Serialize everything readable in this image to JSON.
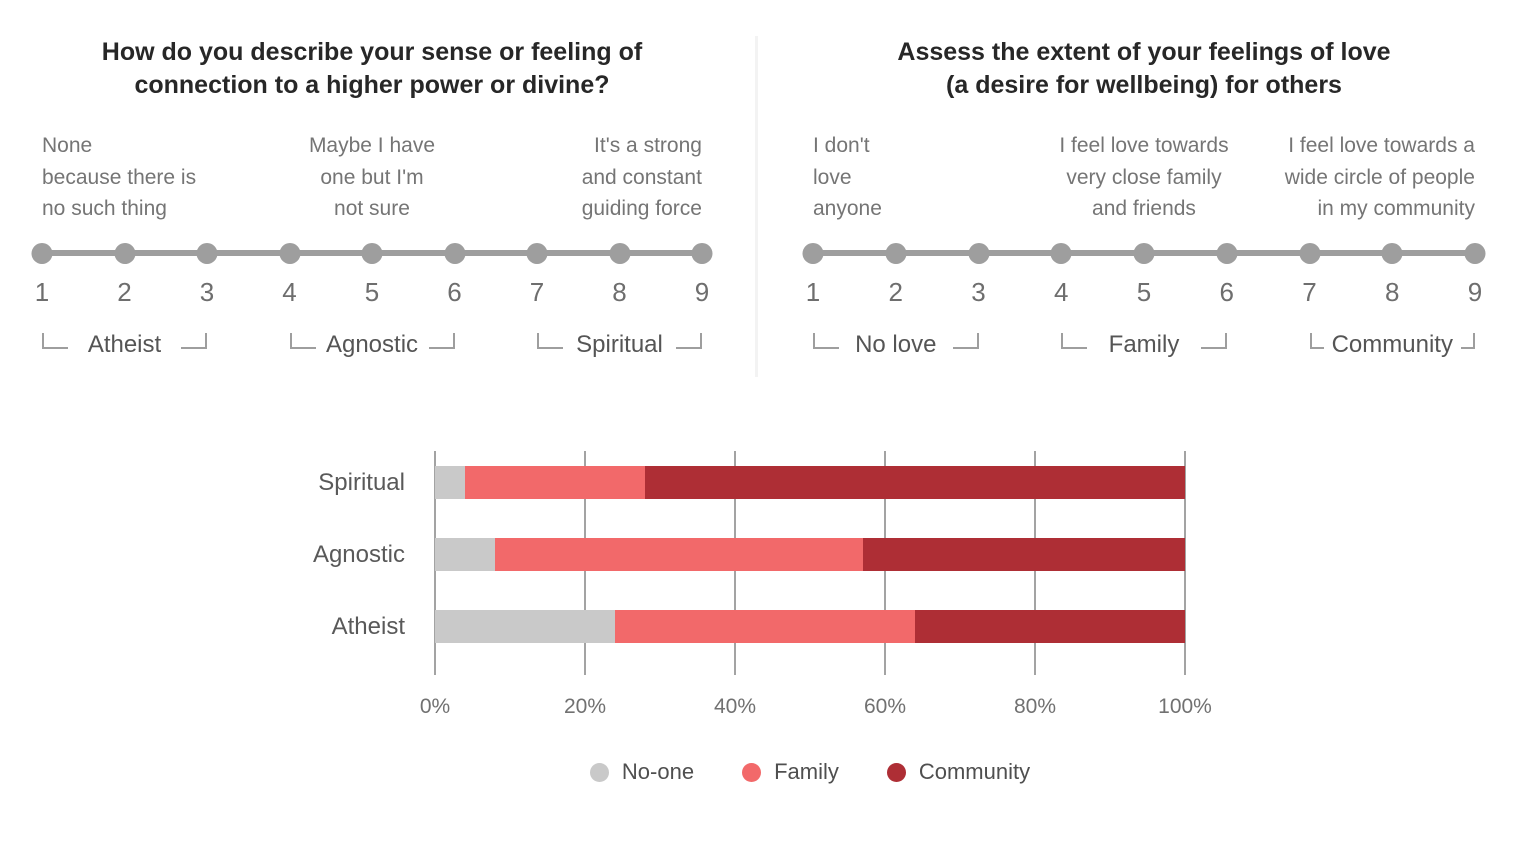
{
  "page": {
    "background": "#ffffff"
  },
  "panels": [
    {
      "title": "How do you describe your sense or feeling of\nconnection to a higher power or divine?",
      "anchors": [
        {
          "text": "None\nbecause there is\nno such thing",
          "align": "left"
        },
        {
          "text": "Maybe I have\none but I'm\nnot sure",
          "align": "center"
        },
        {
          "text": "It's a strong\nand constant\nguiding force",
          "align": "right"
        }
      ],
      "scale_numbers": [
        "1",
        "2",
        "3",
        "4",
        "5",
        "6",
        "7",
        "8",
        "9"
      ],
      "bracket_groups": [
        {
          "label": "Atheist",
          "from": 1,
          "to": 3
        },
        {
          "label": "Agnostic",
          "from": 4,
          "to": 6
        },
        {
          "label": "Spiritual",
          "from": 7,
          "to": 9
        }
      ]
    },
    {
      "title": "Assess the extent of your feelings of love\n(a desire for wellbeing) for others",
      "anchors": [
        {
          "text": "I don't\nlove\nanyone",
          "align": "left"
        },
        {
          "text": "I feel love towards\nvery close family\nand friends",
          "align": "center"
        },
        {
          "text": "I feel love towards a\nwide circle of people\nin my community",
          "align": "right"
        }
      ],
      "scale_numbers": [
        "1",
        "2",
        "3",
        "4",
        "5",
        "6",
        "7",
        "8",
        "9"
      ],
      "bracket_groups": [
        {
          "label": "No love",
          "from": 1,
          "to": 3
        },
        {
          "label": "Family",
          "from": 4,
          "to": 6
        },
        {
          "label": "Community",
          "from": 7,
          "to": 9
        }
      ]
    }
  ],
  "chart_data": {
    "type": "bar",
    "orientation": "horizontal",
    "stacked": true,
    "categories": [
      "Spiritual",
      "Agnostic",
      "Atheist"
    ],
    "series": [
      {
        "name": "No-one",
        "color": "#c9c9c9",
        "values": [
          4,
          8,
          24
        ]
      },
      {
        "name": "Family",
        "color": "#f2696a",
        "values": [
          24,
          49,
          40
        ]
      },
      {
        "name": "Community",
        "color": "#ae2e35",
        "values": [
          72,
          43,
          36
        ]
      }
    ],
    "x_ticks": [
      "0%",
      "20%",
      "40%",
      "60%",
      "80%",
      "100%"
    ],
    "xlim": [
      0,
      100
    ],
    "grid": true,
    "legend_position": "bottom"
  },
  "colors": {
    "scale": "#9e9e9e",
    "title_text": "#272727",
    "anchor_text": "#757575",
    "number_text": "#6e6e6e",
    "bracket_label_text": "#555555",
    "gridline": "#a3a3a3",
    "category_text": "#595959",
    "tick_text": "#717171",
    "legend_text": "#4f4f4f"
  }
}
